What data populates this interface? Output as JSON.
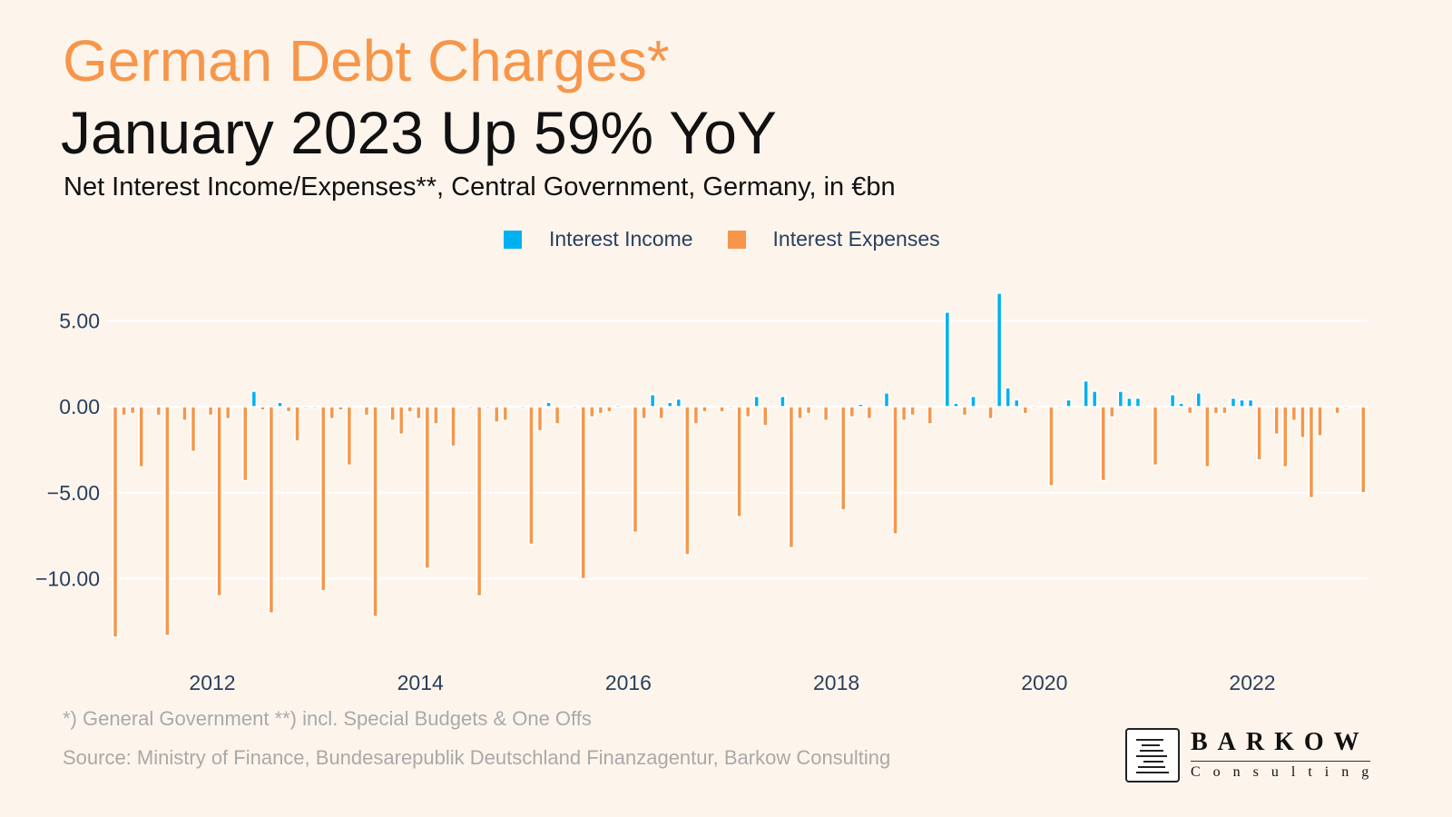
{
  "title": "German Debt Charges*",
  "headline": "January 2023 Up 59% YoY",
  "subtitle": "Net Interest Income/Expenses**, Central Government, Germany, in €bn",
  "footnote": "*) General Government **) incl. Special Budgets & One Offs",
  "source": "Source: Ministry of Finance, Bundesarepublik Deutschland Finanzagentur, Barkow Consulting",
  "logo": {
    "name": "BARKOW",
    "sub": "Consulting"
  },
  "colors": {
    "background": "#fdf5ec",
    "income": "#00b0f0",
    "expenses": "#f7964a",
    "title": "#f7964a"
  },
  "chart_data": {
    "type": "bar",
    "title": "",
    "xlabel": "",
    "ylabel": "",
    "ylim": [
      -14,
      7.5
    ],
    "yticks": [
      5,
      0,
      -5,
      -10
    ],
    "ytick_labels": [
      "5.00",
      "0.00",
      "−5.00",
      "−10.00"
    ],
    "xticks": [
      "2012",
      "2014",
      "2016",
      "2018",
      "2020",
      "2022"
    ],
    "grid": true,
    "legend": "top-center",
    "series": [
      {
        "name": "Interest Income",
        "color": "#00b0f0",
        "points": [
          [
            "2012-05",
            0.9
          ],
          [
            "2012-08",
            0.25
          ],
          [
            "2015-03",
            0.25
          ],
          [
            "2015-11",
            0.1
          ],
          [
            "2016-03",
            0.7
          ],
          [
            "2016-05",
            0.25
          ],
          [
            "2016-06",
            0.45
          ],
          [
            "2017-03",
            0.6
          ],
          [
            "2017-06",
            0.6
          ],
          [
            "2018-03",
            0.15
          ],
          [
            "2018-06",
            0.8
          ],
          [
            "2019-01",
            5.5
          ],
          [
            "2019-02",
            0.2
          ],
          [
            "2019-04",
            0.6
          ],
          [
            "2019-07",
            6.6
          ],
          [
            "2019-08",
            1.1
          ],
          [
            "2019-09",
            0.4
          ],
          [
            "2020-03",
            0.4
          ],
          [
            "2020-05",
            1.5
          ],
          [
            "2020-06",
            0.9
          ],
          [
            "2020-09",
            0.9
          ],
          [
            "2020-10",
            0.5
          ],
          [
            "2020-11",
            0.5
          ],
          [
            "2021-03",
            0.7
          ],
          [
            "2021-04",
            0.2
          ],
          [
            "2021-06",
            0.8
          ],
          [
            "2021-10",
            0.5
          ],
          [
            "2021-11",
            0.4
          ],
          [
            "2021-12",
            0.4
          ]
        ]
      },
      {
        "name": "Interest Expenses",
        "color": "#f7964a",
        "points": [
          [
            "2011-01",
            -13.4
          ],
          [
            "2011-02",
            -0.5
          ],
          [
            "2011-03",
            -0.4
          ],
          [
            "2011-04",
            -3.5
          ],
          [
            "2011-06",
            -0.5
          ],
          [
            "2011-07",
            -13.3
          ],
          [
            "2011-09",
            -0.8
          ],
          [
            "2011-10",
            -2.6
          ],
          [
            "2011-12",
            -0.5
          ],
          [
            "2012-01",
            -11.0
          ],
          [
            "2012-02",
            -0.7
          ],
          [
            "2012-04",
            -4.3
          ],
          [
            "2012-06",
            -0.2
          ],
          [
            "2012-07",
            -12.0
          ],
          [
            "2012-09",
            -0.3
          ],
          [
            "2012-10",
            -2.0
          ],
          [
            "2012-11",
            -0.1
          ],
          [
            "2012-12",
            -0.1
          ],
          [
            "2013-01",
            -10.7
          ],
          [
            "2013-02",
            -0.7
          ],
          [
            "2013-03",
            -0.2
          ],
          [
            "2013-04",
            -3.4
          ],
          [
            "2013-06",
            -0.5
          ],
          [
            "2013-07",
            -12.2
          ],
          [
            "2013-09",
            -0.8
          ],
          [
            "2013-10",
            -1.6
          ],
          [
            "2013-11",
            -0.3
          ],
          [
            "2013-12",
            -0.7
          ],
          [
            "2014-01",
            -9.4
          ],
          [
            "2014-02",
            -1.0
          ],
          [
            "2014-04",
            -2.3
          ],
          [
            "2014-06",
            -0.1
          ],
          [
            "2014-07",
            -11.0
          ],
          [
            "2014-08",
            -0.1
          ],
          [
            "2014-09",
            -0.9
          ],
          [
            "2014-10",
            -0.8
          ],
          [
            "2014-12",
            -0.1
          ],
          [
            "2015-01",
            -8.0
          ],
          [
            "2015-02",
            -1.4
          ],
          [
            "2015-04",
            -1.0
          ],
          [
            "2015-06",
            -0.1
          ],
          [
            "2015-07",
            -10.0
          ],
          [
            "2015-08",
            -0.6
          ],
          [
            "2015-09",
            -0.4
          ],
          [
            "2015-10",
            -0.3
          ],
          [
            "2016-01",
            -7.3
          ],
          [
            "2016-02",
            -0.7
          ],
          [
            "2016-04",
            -0.7
          ],
          [
            "2016-07",
            -8.6
          ],
          [
            "2016-08",
            -1.0
          ],
          [
            "2016-09",
            -0.3
          ],
          [
            "2016-11",
            -0.3
          ],
          [
            "2016-12",
            -0.1
          ],
          [
            "2017-01",
            -6.4
          ],
          [
            "2017-02",
            -0.6
          ],
          [
            "2017-04",
            -1.1
          ],
          [
            "2017-07",
            -8.2
          ],
          [
            "2017-08",
            -0.7
          ],
          [
            "2017-09",
            -0.4
          ],
          [
            "2017-11",
            -0.8
          ],
          [
            "2018-01",
            -6.0
          ],
          [
            "2018-02",
            -0.6
          ],
          [
            "2018-04",
            -0.7
          ],
          [
            "2018-07",
            -7.4
          ],
          [
            "2018-08",
            -0.8
          ],
          [
            "2018-09",
            -0.5
          ],
          [
            "2018-11",
            -1.0
          ],
          [
            "2019-03",
            -0.5
          ],
          [
            "2019-06",
            -0.7
          ],
          [
            "2019-10",
            -0.4
          ],
          [
            "2019-11",
            -0.1
          ],
          [
            "2020-01",
            -4.6
          ],
          [
            "2020-02",
            -0.1
          ],
          [
            "2020-07",
            -4.3
          ],
          [
            "2020-08",
            -0.6
          ],
          [
            "2021-01",
            -3.4
          ],
          [
            "2021-05",
            -0.4
          ],
          [
            "2021-07",
            -3.5
          ],
          [
            "2021-08",
            -0.4
          ],
          [
            "2021-09",
            -0.4
          ],
          [
            "2022-01",
            -3.1
          ],
          [
            "2022-03",
            -1.6
          ],
          [
            "2022-04",
            -3.5
          ],
          [
            "2022-05",
            -0.8
          ],
          [
            "2022-06",
            -1.8
          ],
          [
            "2022-07",
            -5.3
          ],
          [
            "2022-08",
            -1.7
          ],
          [
            "2022-10",
            -0.4
          ],
          [
            "2022-11",
            -0.1
          ],
          [
            "2023-01",
            -5.0
          ]
        ]
      }
    ]
  }
}
